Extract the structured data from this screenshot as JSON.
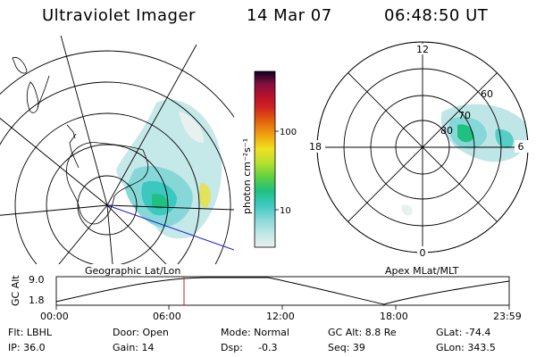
{
  "header": {
    "instrument": "Ultraviolet Imager",
    "date": "14 Mar 07",
    "time": "06:48:50 UT"
  },
  "left_panel": {
    "caption": "Geographic Lat/Lon"
  },
  "right_panel": {
    "caption": "Apex MLat/MLT",
    "mlt_labels": [
      "12",
      "18",
      "6",
      "0"
    ],
    "mlat_labels": [
      "60",
      "70",
      "80"
    ]
  },
  "colorbar": {
    "unit_label": "photon cm⁻²s⁻¹",
    "ticks": [
      "100",
      "10"
    ],
    "scale": "log",
    "colors": [
      "#e8f0f0",
      "#bfe6e6",
      "#86d8d8",
      "#3cc8c0",
      "#20c080",
      "#60d040",
      "#b8e030",
      "#f0e020",
      "#f0a010",
      "#e06010",
      "#d02020",
      "#b01030",
      "#801040",
      "#40103a",
      "#100020"
    ]
  },
  "altitude_plot": {
    "ylabel": "GC Alt",
    "y_ticks": [
      "9.0",
      "1.8"
    ],
    "x_ticks": [
      "00:00",
      "06:00",
      "12:00",
      "18:00",
      "23:59"
    ],
    "current_time_marker": "06:48:50"
  },
  "info": {
    "flt": "Flt: LBHL",
    "door": "Door: Open",
    "mode": "Mode: Normal",
    "gc_alt": "GC Alt: 8.8 Re",
    "glat": "GLat: -74.4",
    "ip": "IP: 36.0",
    "gain": "Gain: 14",
    "dsp_label": "Dsp:",
    "dsp_value": "-0.3",
    "seq": "Seq: 39",
    "glon": "GLon: 343.5"
  }
}
